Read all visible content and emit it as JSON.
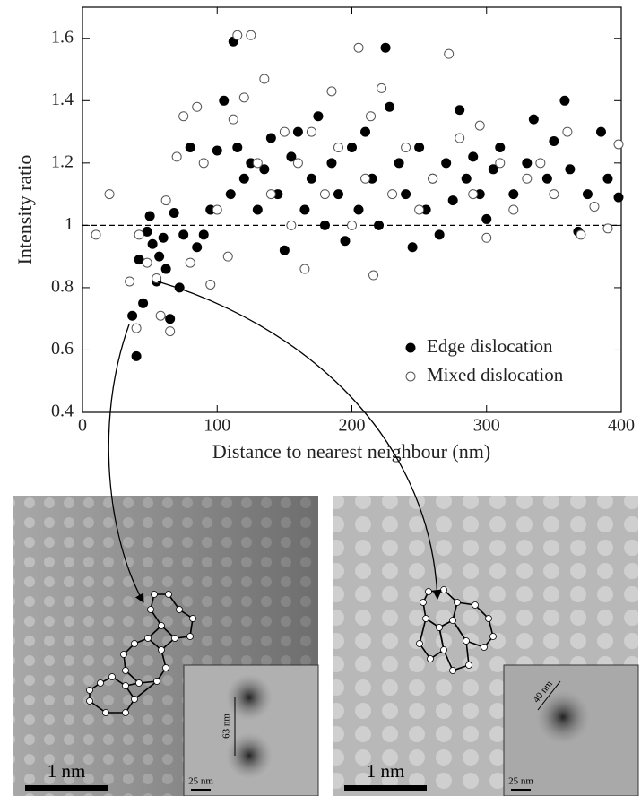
{
  "chart_data": {
    "type": "scatter",
    "xlabel": "Distance to nearest neighbour (nm)",
    "ylabel": "Intensity ratio",
    "xlim": [
      0,
      400
    ],
    "ylim": [
      0.4,
      1.7
    ],
    "xticks": [
      0,
      100,
      200,
      300,
      400
    ],
    "yticks": [
      0.4,
      0.6,
      0.8,
      1,
      1.2,
      1.4,
      1.6
    ],
    "hline": 1,
    "legend": "lower right",
    "series": [
      {
        "name": "Edge dislocation",
        "color": "#000000",
        "edgecolor": "#000000",
        "x": [
          40,
          37,
          42,
          45,
          48,
          50,
          52,
          55,
          57,
          60,
          62,
          65,
          68,
          72,
          75,
          80,
          85,
          90,
          95,
          100,
          105,
          110,
          112,
          115,
          120,
          125,
          130,
          135,
          140,
          145,
          150,
          155,
          160,
          165,
          170,
          175,
          180,
          185,
          190,
          195,
          200,
          205,
          210,
          215,
          220,
          225,
          228,
          235,
          240,
          245,
          250,
          255,
          260,
          265,
          270,
          275,
          280,
          285,
          290,
          295,
          300,
          305,
          310,
          320,
          330,
          335,
          345,
          350,
          358,
          362,
          368,
          375,
          385,
          390,
          398
        ],
        "values": [
          0.58,
          0.71,
          0.89,
          0.75,
          0.98,
          1.03,
          0.94,
          0.82,
          0.9,
          0.96,
          0.86,
          0.7,
          1.04,
          0.8,
          0.97,
          1.25,
          0.93,
          0.97,
          1.05,
          1.24,
          1.4,
          1.1,
          1.59,
          1.25,
          1.15,
          1.2,
          1.05,
          1.18,
          1.28,
          1.1,
          0.92,
          1.22,
          1.3,
          1.05,
          1.15,
          1.35,
          1.0,
          1.2,
          1.1,
          0.95,
          1.25,
          1.05,
          1.3,
          1.15,
          1.0,
          1.57,
          1.38,
          1.2,
          1.1,
          0.93,
          1.25,
          1.05,
          1.15,
          0.97,
          1.2,
          1.08,
          1.37,
          1.15,
          1.22,
          1.1,
          1.02,
          1.18,
          1.25,
          1.1,
          1.2,
          1.34,
          1.15,
          1.27,
          1.4,
          1.18,
          0.98,
          1.1,
          1.3,
          1.15,
          1.09
        ]
      },
      {
        "name": "Mixed dislocation",
        "color": "#ffffff",
        "edgecolor": "#555555",
        "x": [
          10,
          20,
          35,
          40,
          42,
          48,
          55,
          58,
          62,
          65,
          70,
          75,
          80,
          85,
          90,
          95,
          100,
          108,
          112,
          115,
          120,
          125,
          130,
          135,
          140,
          150,
          155,
          160,
          165,
          170,
          180,
          185,
          190,
          200,
          205,
          210,
          214,
          216,
          222,
          230,
          240,
          250,
          260,
          272,
          280,
          290,
          295,
          300,
          310,
          320,
          330,
          340,
          350,
          360,
          370,
          380,
          390,
          398
        ],
        "values": [
          0.97,
          1.1,
          0.82,
          0.67,
          0.97,
          0.88,
          0.83,
          0.71,
          1.08,
          0.66,
          1.22,
          1.35,
          0.88,
          1.38,
          1.2,
          0.81,
          1.05,
          0.9,
          1.34,
          1.61,
          1.41,
          1.61,
          1.2,
          1.47,
          1.1,
          1.3,
          1.0,
          1.2,
          0.86,
          1.3,
          1.1,
          1.43,
          1.25,
          1.0,
          1.57,
          1.15,
          1.35,
          0.84,
          1.44,
          1.1,
          1.25,
          1.05,
          1.15,
          1.55,
          1.28,
          1.1,
          1.32,
          0.96,
          1.2,
          1.05,
          1.15,
          1.2,
          1.1,
          1.3,
          0.97,
          1.06,
          0.99,
          1.26
        ]
      }
    ]
  },
  "images": [
    {
      "scale_bar": "1 nm",
      "inset_scale_bar": "25 nm",
      "inset_length": "63 nm"
    },
    {
      "scale_bar": "1 nm",
      "inset_scale_bar": "25 nm",
      "inset_length": "40 nm"
    }
  ]
}
